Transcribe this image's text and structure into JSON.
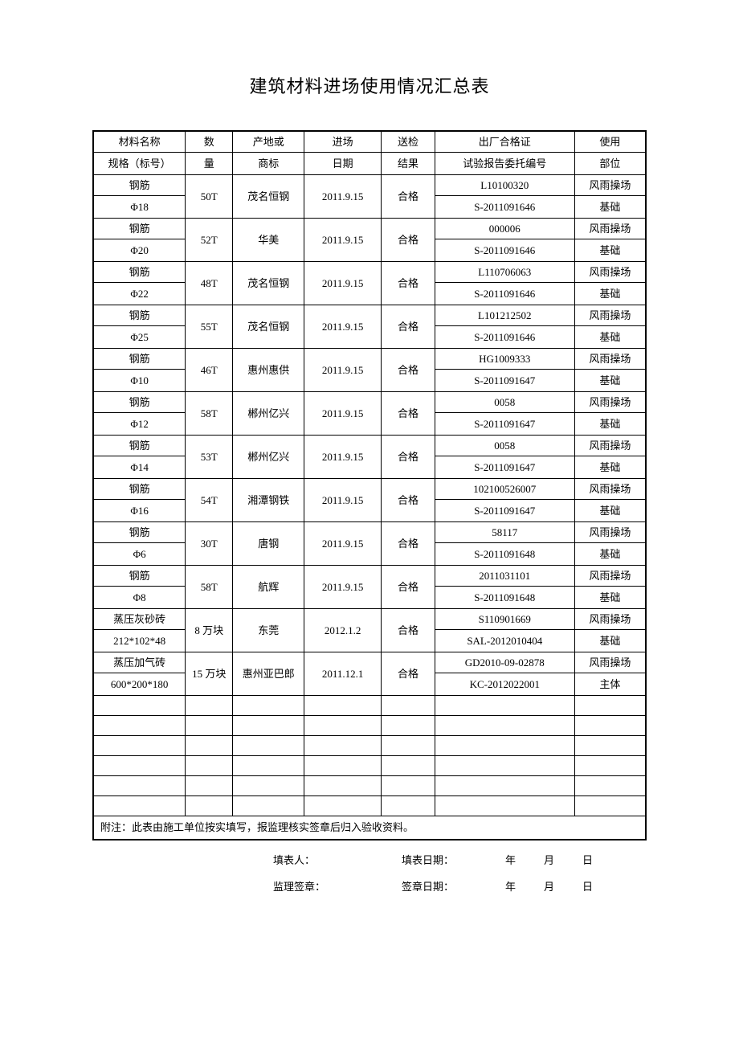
{
  "title": "建筑材料进场使用情况汇总表",
  "header": {
    "name_top": "材料名称",
    "name_bot": "规格（标号）",
    "qty_top": "数",
    "qty_bot": "量",
    "brand_top": "产地或",
    "brand_bot": "商标",
    "date_top": "进场",
    "date_bot": "日期",
    "result_top": "送检",
    "result_bot": "结果",
    "cert_top": "出厂合格证",
    "cert_bot": "试验报告委托编号",
    "use_top": "使用",
    "use_bot": "部位"
  },
  "rows": [
    {
      "name_top": "钢筋",
      "name_bot": "Φ18",
      "qty": "50T",
      "brand": "茂名恒钢",
      "date": "2011.9.15",
      "result": "合格",
      "cert_top": "L10100320",
      "cert_bot": "S-2011091646",
      "use_top": "风雨操场",
      "use_bot": "基础"
    },
    {
      "name_top": "钢筋",
      "name_bot": "Φ20",
      "qty": "52T",
      "brand": "华美",
      "date": "2011.9.15",
      "result": "合格",
      "cert_top": "000006",
      "cert_bot": "S-2011091646",
      "use_top": "风雨操场",
      "use_bot": "基础"
    },
    {
      "name_top": "钢筋",
      "name_bot": "Φ22",
      "qty": "48T",
      "brand": "茂名恒钢",
      "date": "2011.9.15",
      "result": "合格",
      "cert_top": "L110706063",
      "cert_bot": "S-2011091646",
      "use_top": "风雨操场",
      "use_bot": "基础"
    },
    {
      "name_top": "钢筋",
      "name_bot": "Φ25",
      "qty": "55T",
      "brand": "茂名恒钢",
      "date": "2011.9.15",
      "result": "合格",
      "cert_top": "L101212502",
      "cert_bot": "S-2011091646",
      "use_top": "风雨操场",
      "use_bot": "基础"
    },
    {
      "name_top": "钢筋",
      "name_bot": "Φ10",
      "qty": "46T",
      "brand": "惠州惠供",
      "date": "2011.9.15",
      "result": "合格",
      "cert_top": "HG1009333",
      "cert_bot": "S-2011091647",
      "use_top": "风雨操场",
      "use_bot": "基础"
    },
    {
      "name_top": "钢筋",
      "name_bot": "Φ12",
      "qty": "58T",
      "brand": "郴州亿兴",
      "date": "2011.9.15",
      "result": "合格",
      "cert_top": "0058",
      "cert_bot": "S-2011091647",
      "use_top": "风雨操场",
      "use_bot": "基础"
    },
    {
      "name_top": "钢筋",
      "name_bot": "Φ14",
      "qty": "53T",
      "brand": "郴州亿兴",
      "date": "2011.9.15",
      "result": "合格",
      "cert_top": "0058",
      "cert_bot": "S-2011091647",
      "use_top": "风雨操场",
      "use_bot": "基础"
    },
    {
      "name_top": "钢筋",
      "name_bot": "Φ16",
      "qty": "54T",
      "brand": "湘潭钢铁",
      "date": "2011.9.15",
      "result": "合格",
      "cert_top": "102100526007",
      "cert_bot": "S-2011091647",
      "use_top": "风雨操场",
      "use_bot": "基础"
    },
    {
      "name_top": "钢筋",
      "name_bot": "Φ6",
      "qty": "30T",
      "brand": "唐钢",
      "date": "2011.9.15",
      "result": "合格",
      "cert_top": "58117",
      "cert_bot": "S-2011091648",
      "use_top": "风雨操场",
      "use_bot": "基础"
    },
    {
      "name_top": "钢筋",
      "name_bot": "Φ8",
      "qty": "58T",
      "brand": "航辉",
      "date": "2011.9.15",
      "result": "合格",
      "cert_top": "2011031101",
      "cert_bot": "S-2011091648",
      "use_top": "风雨操场",
      "use_bot": "基础"
    },
    {
      "name_top": "蒸压灰砂砖",
      "name_bot": "212*102*48",
      "qty": "8 万块",
      "brand": "东莞",
      "date": "2012.1.2",
      "result": "合格",
      "cert_top": "S110901669",
      "cert_bot": "SAL-2012010404",
      "use_top": "风雨操场",
      "use_bot": "基础"
    },
    {
      "name_top": "蒸压加气砖",
      "name_bot": "600*200*180",
      "qty": "15 万块",
      "brand": "惠州亚巴郎",
      "date": "2011.12.1",
      "result": "合格",
      "cert_top": "GD2010-09-02878",
      "cert_bot": "KC-2012022001",
      "use_top": "风雨操场",
      "use_bot": "主体"
    }
  ],
  "empty_rows": 6,
  "note": "附注：此表由施工单位按实填写，报监理核实签章后归入验收资料。",
  "footer": {
    "filler_label": "填表人：",
    "fill_date_label": "填表日期：",
    "supervisor_label": "监理签章：",
    "sign_date_label": "签章日期：",
    "year": "年",
    "month": "月",
    "day": "日"
  },
  "colors": {
    "border": "#000000",
    "text": "#000000",
    "background": "#ffffff"
  }
}
